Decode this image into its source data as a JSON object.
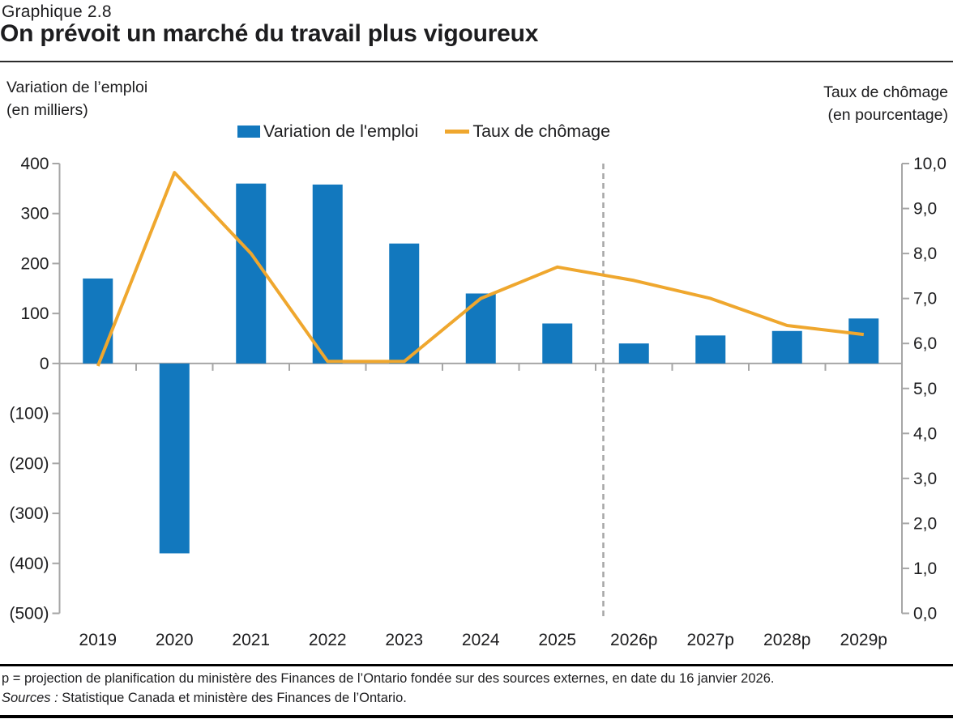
{
  "header": {
    "chart_number": "Graphique 2.8",
    "title": "On prévoit un marché du travail plus vigoureux"
  },
  "axes": {
    "left_title_line1": "Variation de l’emploi",
    "left_title_line2": "(en milliers)",
    "right_title_line1": "Taux de chômage",
    "right_title_line2": "(en pourcentage)"
  },
  "legend": {
    "bar_label": "Variation de l'emploi",
    "line_label": "Taux de chômage"
  },
  "footer": {
    "footnote": "p = projection de planification du ministère des Finances de l’Ontario fondée sur des sources externes, en date du 16 janvier 2026.",
    "sources_prefix": "Sources :",
    "sources_text": " Statistique Canada et ministère des Finances de l’Ontario."
  },
  "colors": {
    "bar_blue": "#1278BE",
    "line_gold": "#EFA72E",
    "axis_gray": "#A6A6A6",
    "text": "#1D1D1F"
  },
  "chart_data": {
    "type": "bar",
    "subtype": "bar+line combo, dual axis",
    "categories": [
      "2019",
      "2020",
      "2021",
      "2022",
      "2023",
      "2024",
      "2025",
      "2026p",
      "2027p",
      "2028p",
      "2029p"
    ],
    "series": [
      {
        "name": "Variation de l'emploi",
        "type": "bar",
        "axis": "left",
        "values": [
          170,
          -380,
          360,
          358,
          240,
          140,
          80,
          40,
          56,
          65,
          90
        ]
      },
      {
        "name": "Taux de chômage",
        "type": "line",
        "axis": "right",
        "values": [
          5.5,
          9.8,
          8.0,
          5.6,
          5.6,
          7.0,
          7.7,
          7.4,
          7.0,
          6.4,
          6.2
        ]
      }
    ],
    "title": "On prévoit un marché du travail plus vigoureux",
    "xlabel": "",
    "ylabel_left": "Variation de l’emploi (en milliers)",
    "ylabel_right": "Taux de chômage (en pourcentage)",
    "left_axis": {
      "min": -500,
      "max": 400,
      "step": 100,
      "tick_labels": [
        "400",
        "300",
        "200",
        "100",
        "0",
        "(100)",
        "(200)",
        "(300)",
        "(400)",
        "(500)"
      ]
    },
    "right_axis": {
      "min": 0,
      "max": 10,
      "step": 1,
      "tick_labels": [
        "10,0",
        "9,0",
        "8,0",
        "7,0",
        "6,0",
        "5,0",
        "4,0",
        "3,0",
        "2,0",
        "1,0",
        "0,0"
      ]
    },
    "grid": "off",
    "legend_position": "top-center",
    "projection_divider_between": [
      "2025",
      "2026p"
    ]
  }
}
